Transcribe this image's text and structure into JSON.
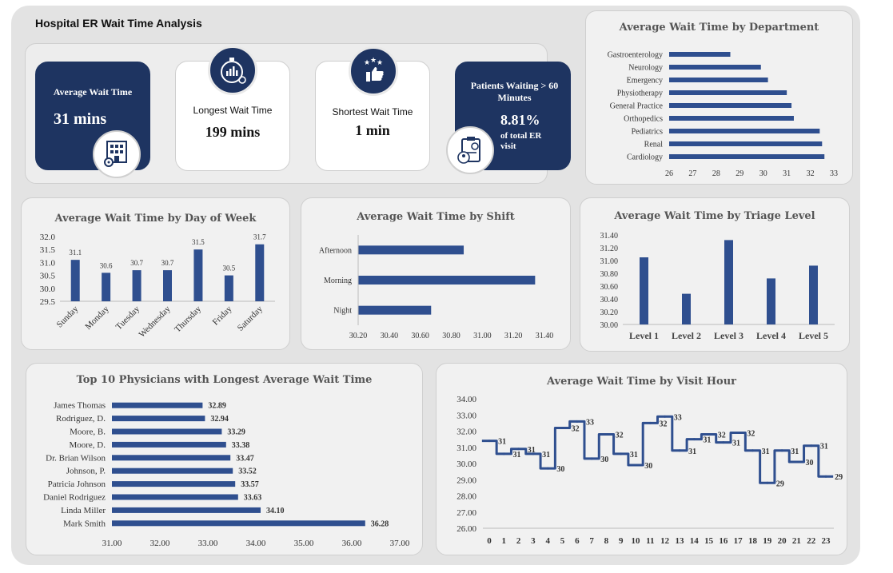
{
  "dashboard": {
    "title": "Hospital ER Wait Time Analysis"
  },
  "kpis": {
    "avg": {
      "label": "Average Wait Time",
      "value": "31 mins",
      "icon": "hospital-building-icon"
    },
    "longest": {
      "label": "Longest Wait Time",
      "value": "199 mins",
      "icon": "stopwatch-icon"
    },
    "shortest": {
      "label": "Shortest Wait Time",
      "value": "1 min",
      "icon": "thumbs-up-stars-icon"
    },
    "over60": {
      "label": "Patients Waiting > 60 Minutes",
      "value": "8.81%",
      "sub": "of total ER visit",
      "icon": "clipboard-patient-icon"
    }
  },
  "colors": {
    "bar": "#2f4f8f",
    "dark": "#1e3461",
    "panel": "#f1f1f1"
  },
  "chart_data": [
    {
      "id": "department",
      "type": "bar",
      "orientation": "horizontal",
      "title": "Average Wait Time by Department",
      "categories": [
        "Gastroenterology",
        "Neurology",
        "Emergency",
        "Physiotherapy",
        "General Practice",
        "Orthopedics",
        "Pediatrics",
        "Renal",
        "Cardiology"
      ],
      "values": [
        28.6,
        29.9,
        30.2,
        31.0,
        31.2,
        31.3,
        32.4,
        32.5,
        32.6
      ],
      "xlim": [
        26,
        33
      ],
      "ticks": [
        "26",
        "27",
        "28",
        "29",
        "30",
        "31",
        "32",
        "33"
      ]
    },
    {
      "id": "dayofweek",
      "type": "bar",
      "title": "Average Wait Time by Day of Week",
      "categories": [
        "Sunday",
        "Monday",
        "Tuesday",
        "Wednesday",
        "Thursday",
        "Friday",
        "Saturday"
      ],
      "values": [
        31.1,
        30.6,
        30.7,
        30.7,
        31.5,
        30.5,
        31.7
      ],
      "labels": [
        "31.1",
        "30.6",
        "30.7",
        "30.7",
        "31.5",
        "30.5",
        "31.7"
      ],
      "ylim": [
        29.5,
        32.0
      ],
      "ticks": [
        "32.0",
        "31.5",
        "31.0",
        "30.5",
        "30.0",
        "29.5"
      ]
    },
    {
      "id": "shift",
      "type": "bar",
      "orientation": "horizontal",
      "title": "Average Wait Time by Shift",
      "categories": [
        "Afternoon",
        "Morning",
        "Night"
      ],
      "values": [
        30.88,
        31.34,
        30.67
      ],
      "xlim": [
        30.2,
        31.4
      ],
      "ticks": [
        "30.20",
        "30.40",
        "30.60",
        "30.80",
        "31.00",
        "31.20",
        "31.40"
      ]
    },
    {
      "id": "triage",
      "type": "bar",
      "title": "Average Wait Time by Triage Level",
      "categories": [
        "Level 1",
        "Level 2",
        "Level 3",
        "Level 4",
        "Level 5"
      ],
      "values": [
        31.05,
        30.48,
        31.32,
        30.72,
        30.92
      ],
      "ylim": [
        30.0,
        31.4
      ],
      "ticks": [
        "31.40",
        "31.20",
        "31.00",
        "30.80",
        "30.60",
        "30.40",
        "30.20",
        "30.00"
      ]
    },
    {
      "id": "physicians",
      "type": "bar",
      "orientation": "horizontal",
      "title": "Top 10  Physicians with Longest Average Wait Time",
      "categories": [
        "James Thomas",
        "Rodriguez, D.",
        "Moore, B.",
        "Moore, D.",
        "Dr. Brian Wilson",
        "Johnson, P.",
        "Patricia Johnson",
        "Daniel Rodriguez",
        "Linda Miller",
        "Mark Smith"
      ],
      "values": [
        32.89,
        32.94,
        33.29,
        33.38,
        33.47,
        33.52,
        33.57,
        33.63,
        34.1,
        36.28
      ],
      "labels": [
        "32.89",
        "32.94",
        "33.29",
        "33.38",
        "33.47",
        "33.52",
        "33.57",
        "33.63",
        "34.10",
        "36.28"
      ],
      "xlim": [
        31,
        37
      ],
      "ticks": [
        "31.00",
        "32.00",
        "33.00",
        "34.00",
        "35.00",
        "36.00",
        "37.00"
      ]
    },
    {
      "id": "visithour",
      "type": "line",
      "step": true,
      "title": "Average Wait Time by Visit Hour",
      "x": [
        "0",
        "1",
        "2",
        "3",
        "4",
        "5",
        "6",
        "7",
        "8",
        "9",
        "10",
        "11",
        "12",
        "13",
        "14",
        "15",
        "16",
        "17",
        "18",
        "19",
        "20",
        "21",
        "22",
        "23"
      ],
      "values": [
        31.4,
        30.6,
        30.9,
        30.6,
        29.7,
        32.2,
        32.6,
        30.3,
        31.8,
        30.6,
        29.9,
        32.5,
        32.9,
        30.8,
        31.5,
        31.8,
        31.3,
        31.9,
        30.8,
        28.8,
        30.8,
        30.1,
        31.1,
        29.2
      ],
      "labels": [
        "31",
        "31",
        "31",
        "31",
        "30",
        "32",
        "33",
        "30",
        "32",
        "31",
        "30",
        "32",
        "33",
        "31",
        "31",
        "32",
        "31",
        "32",
        "31",
        "29",
        "31",
        "30",
        "31",
        "29"
      ],
      "ylim": [
        26,
        34
      ],
      "ticks": [
        "34.00",
        "33.00",
        "32.00",
        "31.00",
        "30.00",
        "29.00",
        "28.00",
        "27.00",
        "26.00"
      ]
    }
  ]
}
